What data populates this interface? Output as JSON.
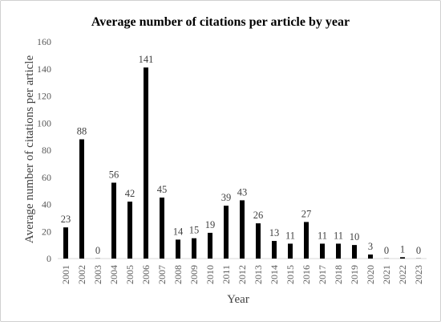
{
  "chart_data": {
    "type": "bar",
    "title": "Average number of citations per article by year",
    "xlabel": "Year",
    "ylabel": "Average number of citations per article",
    "ylim": [
      0,
      160
    ],
    "yticks": [
      0,
      20,
      40,
      60,
      80,
      100,
      120,
      140,
      160
    ],
    "grid": "none",
    "bar_color": "#000000",
    "categories": [
      "2001",
      "2002",
      "2003",
      "2004",
      "2005",
      "2006",
      "2007",
      "2008",
      "2009",
      "2010",
      "2011",
      "2012",
      "2013",
      "2014",
      "2015",
      "2016",
      "2017",
      "2018",
      "2019",
      "2020",
      "2021",
      "2022",
      "2023"
    ],
    "values": [
      23,
      88,
      0,
      56,
      42,
      141,
      45,
      14,
      15,
      19,
      39,
      43,
      26,
      13,
      11,
      27,
      11,
      11,
      10,
      3,
      0,
      1,
      0
    ]
  }
}
